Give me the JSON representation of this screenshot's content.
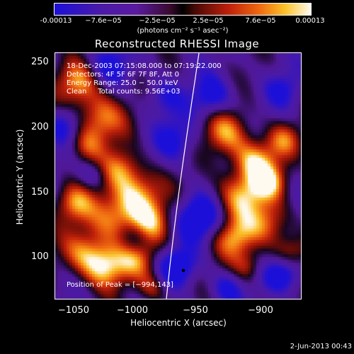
{
  "colorbar": {
    "ticks": [
      "-0.00013",
      "−7.6e−05",
      "−2.5e−05",
      "2.5e−05",
      "7.6e−05",
      "0.00013"
    ],
    "unit": "(photons cm⁻² s⁻¹ asec⁻²)"
  },
  "title": "Reconstructed RHESSI Image",
  "info": {
    "time": "18-Dec-2003 07:15:08.000 to 07:19:22.000",
    "detectors": "Detectors: 4F 5F 6F 7F 8F, Att 0",
    "energy": "Energy Range: 25.0 − 50.0 keV",
    "clean": "Clean     Total counts: 9.56E+03",
    "peak": "Position of Peak = [−994,143]"
  },
  "axes": {
    "xlabel": "Heliocentric X (arcsec)",
    "ylabel": "Heliocentric Y (arcsec)",
    "xticks": [
      "−1050",
      "−1000",
      "−950",
      "−900"
    ],
    "yticks": [
      "250",
      "200",
      "150",
      "100"
    ]
  },
  "datestamp": "2-Jun-2013 00:43"
}
